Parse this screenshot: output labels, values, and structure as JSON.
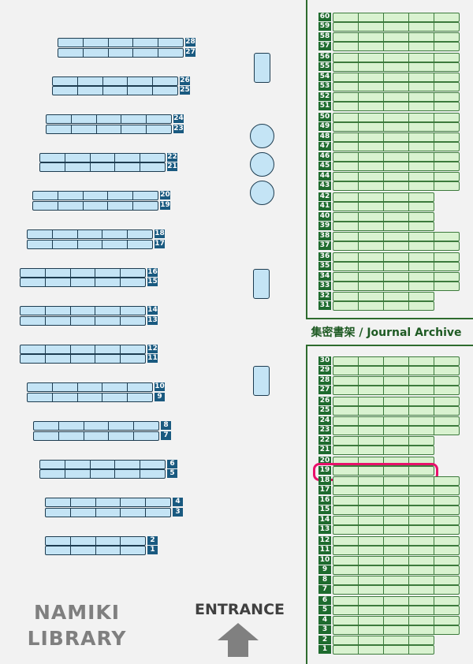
{
  "library_name": [
    "NAMIKI",
    "LIBRARY"
  ],
  "entrance_label": "ENTRANCE",
  "archive_label": "集密書架 / Journal Archive",
  "highlighted_shelf": "19",
  "colors": {
    "bookshelf": "#c4e4f5",
    "bookshelf_label": "#1a5a80",
    "archive_shelf": "#d9f2d0",
    "archive_label": "#1e6b2e",
    "highlight": "#e8106a"
  },
  "bookshelves": [
    {
      "top": "28",
      "bottom": "27",
      "cells": 5
    },
    {
      "top": "26",
      "bottom": "25",
      "cells": 5
    },
    {
      "top": "24",
      "bottom": "23",
      "cells": 5
    },
    {
      "top": "22",
      "bottom": "21",
      "cells": 5
    },
    {
      "top": "20",
      "bottom": "19",
      "cells": 5
    },
    {
      "top": "18",
      "bottom": "17",
      "cells": 5
    },
    {
      "top": "16",
      "bottom": "15",
      "cells": 5
    },
    {
      "top": "14",
      "bottom": "13",
      "cells": 5
    },
    {
      "top": "12",
      "bottom": "11",
      "cells": 5
    },
    {
      "top": "10",
      "bottom": "9",
      "cells": 5
    },
    {
      "top": "8",
      "bottom": "7",
      "cells": 5
    },
    {
      "top": "6",
      "bottom": "5",
      "cells": 5
    },
    {
      "top": "4",
      "bottom": "3",
      "cells": 5
    },
    {
      "top": "2",
      "bottom": "1",
      "cells": 4
    }
  ],
  "archive_upper": [
    {
      "top": "60",
      "bottom": "59",
      "cells": 5
    },
    {
      "top": "58",
      "bottom": "57",
      "cells": 5
    },
    {
      "top": "56",
      "bottom": "55",
      "cells": 5
    },
    {
      "top": "54",
      "bottom": "53",
      "cells": 5
    },
    {
      "top": "52",
      "bottom": "51",
      "cells": 5
    },
    {
      "top": "50",
      "bottom": "49",
      "cells": 5
    },
    {
      "top": "48",
      "bottom": "47",
      "cells": 5
    },
    {
      "top": "46",
      "bottom": "45",
      "cells": 5
    },
    {
      "top": "44",
      "bottom": "43",
      "cells": 5
    },
    {
      "top": "42",
      "bottom": "41",
      "cells": 4
    },
    {
      "top": "40",
      "bottom": "39",
      "cells": 4
    },
    {
      "top": "38",
      "bottom": "37",
      "cells": 5
    },
    {
      "top": "36",
      "bottom": "35",
      "cells": 5
    },
    {
      "top": "34",
      "bottom": "33",
      "cells": 5
    },
    {
      "top": "32",
      "bottom": "31",
      "cells": 4
    }
  ],
  "archive_lower": [
    {
      "top": "30",
      "bottom": "29",
      "cells": 5
    },
    {
      "top": "28",
      "bottom": "27",
      "cells": 5
    },
    {
      "top": "26",
      "bottom": "25",
      "cells": 5
    },
    {
      "top": "24",
      "bottom": "23",
      "cells": 5
    },
    {
      "top": "22",
      "bottom": "21",
      "cells": 4
    },
    {
      "top": "20",
      "bottom": "19",
      "cells": 4
    },
    {
      "top": "18",
      "bottom": "17",
      "cells": 5
    },
    {
      "top": "16",
      "bottom": "15",
      "cells": 5
    },
    {
      "top": "14",
      "bottom": "13",
      "cells": 5
    },
    {
      "top": "12",
      "bottom": "11",
      "cells": 5
    },
    {
      "top": "10",
      "bottom": "9",
      "cells": 5
    },
    {
      "top": "8",
      "bottom": "7",
      "cells": 5
    },
    {
      "top": "6",
      "bottom": "5",
      "cells": 5
    },
    {
      "top": "4",
      "bottom": "3",
      "cells": 5
    },
    {
      "top": "2",
      "bottom": "1",
      "cells": 4
    }
  ]
}
